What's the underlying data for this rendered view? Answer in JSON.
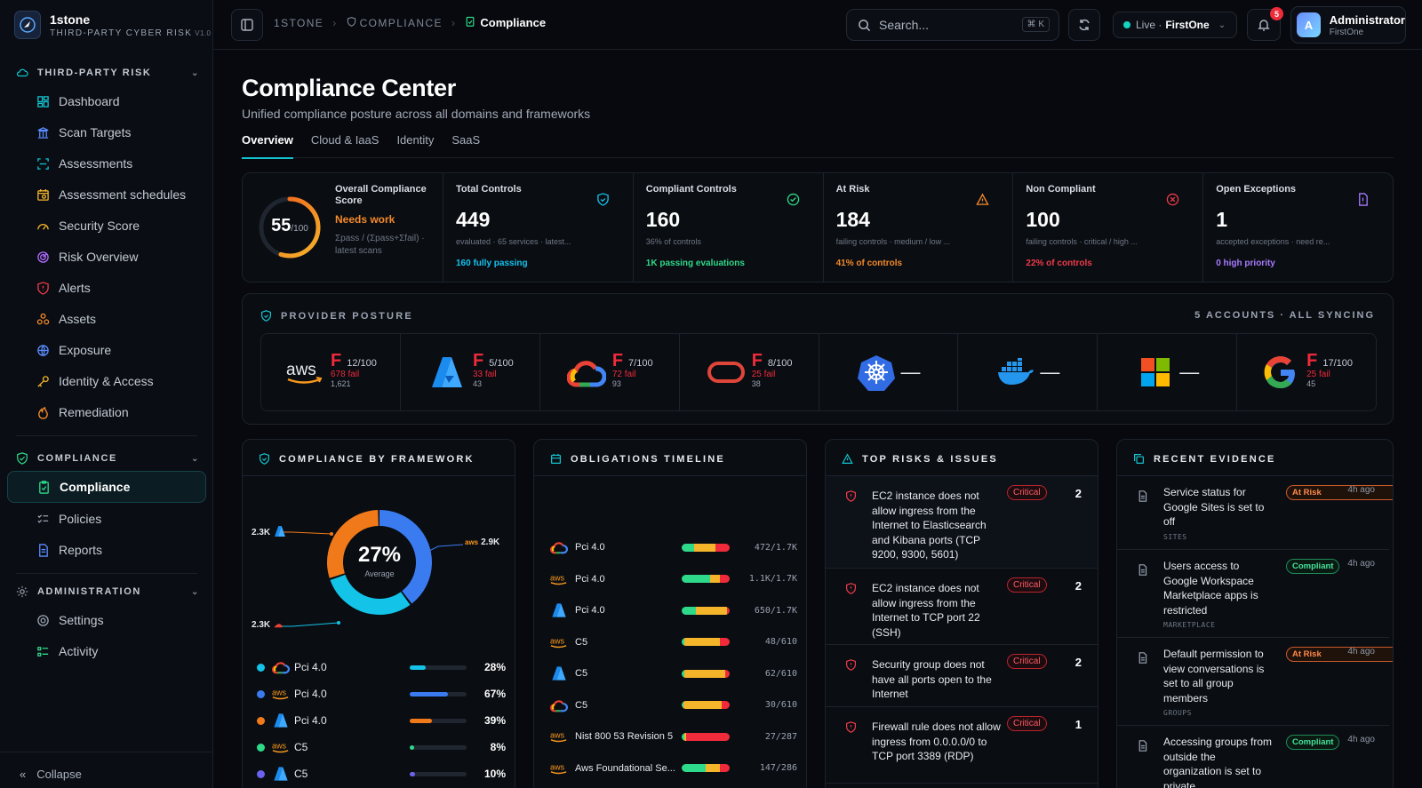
{
  "brand": {
    "name": "1stone",
    "tagline": "THIRD-PARTY CYBER RISK",
    "version": "V1.0"
  },
  "sidebar": {
    "sections": [
      {
        "title": "THIRD-PARTY RISK",
        "items": [
          "Dashboard",
          "Scan Targets",
          "Assessments",
          "Assessment schedules",
          "Security Score",
          "Risk Overview",
          "Alerts",
          "Assets",
          "Exposure",
          "Identity & Access",
          "Remediation"
        ]
      },
      {
        "title": "COMPLIANCE",
        "items": [
          "Compliance",
          "Policies",
          "Reports"
        ]
      },
      {
        "title": "ADMINISTRATION",
        "items": [
          "Settings",
          "Activity"
        ]
      }
    ],
    "active": "Compliance",
    "collapse_label": "Collapse"
  },
  "topbar": {
    "breadcrumb": [
      "1STONE",
      "COMPLIANCE",
      "Compliance"
    ],
    "search_placeholder": "Search...",
    "search_shortcut": "⌘ K",
    "live_label": "Live ·",
    "org": "FirstOne",
    "notifications": "5",
    "user": {
      "name": "Administrator",
      "org": "FirstOne",
      "initial": "A"
    }
  },
  "page": {
    "title": "Compliance Center",
    "subtitle": "Unified compliance posture across all domains and frameworks",
    "tabs": [
      "Overview",
      "Cloud & IaaS",
      "Identity",
      "SaaS"
    ],
    "active_tab": "Overview"
  },
  "score": {
    "value": "55",
    "max": "/100",
    "fraction": 0.55,
    "label": "Overall Compliance Score",
    "status": "Needs work",
    "formula": "Σpass / (Σpass+Σfail) · latest scans"
  },
  "stats": [
    {
      "label": "Total Controls",
      "value": "449",
      "note": "evaluated · 65 services · latest...",
      "foot": "160 fully passing",
      "color": "#14c3f0",
      "icon": "shield-icon"
    },
    {
      "label": "Compliant Controls",
      "value": "160",
      "note": "36% of controls",
      "foot": "1K passing evaluations",
      "color": "#2fd98a",
      "icon": "check-circle-icon"
    },
    {
      "label": "At Risk",
      "value": "184",
      "note": "failing controls · medium / low ...",
      "foot": "41% of controls",
      "color": "#f58a2b",
      "icon": "warning-icon"
    },
    {
      "label": "Non Compliant",
      "value": "100",
      "note": "failing controls · critical / high ...",
      "foot": "22% of controls",
      "color": "#ef3b4a",
      "icon": "x-circle-icon"
    },
    {
      "label": "Open Exceptions",
      "value": "1",
      "note": "accepted exceptions · need re...",
      "foot": "0 high priority",
      "color": "#a77bff",
      "icon": "document-icon"
    }
  ],
  "providers": {
    "title": "PROVIDER POSTURE",
    "status": "5 ACCOUNTS · ALL SYNCING",
    "items": [
      {
        "name": "aws",
        "grade": "F",
        "score": "12/100",
        "fail": "678 fail",
        "count": "1,621"
      },
      {
        "name": "azure",
        "grade": "F",
        "score": "5/100",
        "fail": "33 fail",
        "count": "43"
      },
      {
        "name": "gcp",
        "grade": "F",
        "score": "7/100",
        "fail": "72 fail",
        "count": "93"
      },
      {
        "name": "oracle",
        "grade": "F",
        "score": "8/100",
        "fail": "25 fail",
        "count": "38"
      },
      {
        "name": "kubernetes",
        "grade": "—"
      },
      {
        "name": "docker",
        "grade": "—"
      },
      {
        "name": "microsoft",
        "grade": "—"
      },
      {
        "name": "google",
        "grade": "F",
        "score": "17/100",
        "fail": "25 fail",
        "count": "45"
      }
    ]
  },
  "framework": {
    "title": "COMPLIANCE BY FRAMEWORK",
    "average": "27%",
    "average_label": "Average",
    "callouts": [
      "2.3K",
      "2.9K",
      "2.3K"
    ],
    "rows": [
      {
        "icon": "gcp",
        "name": "Pci 4.0",
        "pct": "28%",
        "value": 0.28,
        "color": "#13c4e8"
      },
      {
        "icon": "aws",
        "name": "Pci 4.0",
        "pct": "67%",
        "value": 0.67,
        "color": "#3b7bf0"
      },
      {
        "icon": "azure",
        "name": "Pci 4.0",
        "pct": "39%",
        "value": 0.39,
        "color": "#f07a1a"
      },
      {
        "icon": "aws",
        "name": "C5",
        "pct": "8%",
        "value": 0.08,
        "color": "#2fd98a"
      },
      {
        "icon": "azure",
        "name": "C5",
        "pct": "10%",
        "value": 0.1,
        "color": "#6b63f0"
      }
    ]
  },
  "timeline": {
    "title": "OBLIGATIONS TIMELINE",
    "rows": [
      {
        "icon": "gcp",
        "name": "Pci 4.0",
        "value": "472/1.7K",
        "mix": [
          0.25,
          0.45,
          0.3
        ]
      },
      {
        "icon": "aws",
        "name": "Pci 4.0",
        "value": "1.1K/1.7K",
        "mix": [
          0.6,
          0.2,
          0.2
        ]
      },
      {
        "icon": "azure",
        "name": "Pci 4.0",
        "value": "650/1.7K",
        "mix": [
          0.3,
          0.65,
          0.05
        ]
      },
      {
        "icon": "aws",
        "name": "C5",
        "value": "48/610",
        "mix": [
          0.05,
          0.75,
          0.2
        ]
      },
      {
        "icon": "azure",
        "name": "C5",
        "value": "62/610",
        "mix": [
          0.05,
          0.85,
          0.1
        ]
      },
      {
        "icon": "gcp",
        "name": "C5",
        "value": "30/610",
        "mix": [
          0.03,
          0.8,
          0.17
        ]
      },
      {
        "icon": "aws",
        "name": "Nist 800 53 Revision 5",
        "value": "27/287",
        "mix": [
          0.05,
          0.05,
          0.9
        ]
      },
      {
        "icon": "aws",
        "name": "Aws Foundational Se...",
        "value": "147/286",
        "mix": [
          0.5,
          0.3,
          0.2
        ]
      }
    ]
  },
  "risks": {
    "title": "TOP RISKS & ISSUES",
    "items": [
      {
        "text": "EC2 instance does not allow ingress from the Internet to Elasticsearch and Kibana ports (TCP 9200, 9300, 5601)",
        "badge": "Critical",
        "count": "2"
      },
      {
        "text": "EC2 instance does not allow ingress from the Internet to TCP port 22 (SSH)",
        "badge": "Critical",
        "count": "2"
      },
      {
        "text": "Security group does not have all ports open to the Internet",
        "badge": "Critical",
        "count": "2"
      },
      {
        "text": "Firewall rule does not allow ingress from 0.0.0.0/0 to TCP port 3389 (RDP)",
        "badge": "Critical",
        "count": "1"
      }
    ]
  },
  "evidence": {
    "title": "RECENT EVIDENCE",
    "items": [
      {
        "text": "Service status for Google Sites is set to off",
        "source": "SITES",
        "badge": "At Risk",
        "time": "4h ago"
      },
      {
        "text": "Users access to Google Workspace Marketplace apps is restricted",
        "source": "MARKETPLACE",
        "badge": "Compliant",
        "time": "4h ago"
      },
      {
        "text": "Default permission to view conversations is set to all group members",
        "source": "GROUPS",
        "badge": "At Risk",
        "time": "4h ago"
      },
      {
        "text": "Accessing groups from outside the organization is set to private",
        "source": "",
        "badge": "Compliant",
        "time": "4h ago"
      }
    ]
  },
  "colors": {
    "accent": "#13c4d0",
    "critical": "#ef2b3b",
    "warning": "#f58a2b",
    "success": "#2fd98a"
  }
}
